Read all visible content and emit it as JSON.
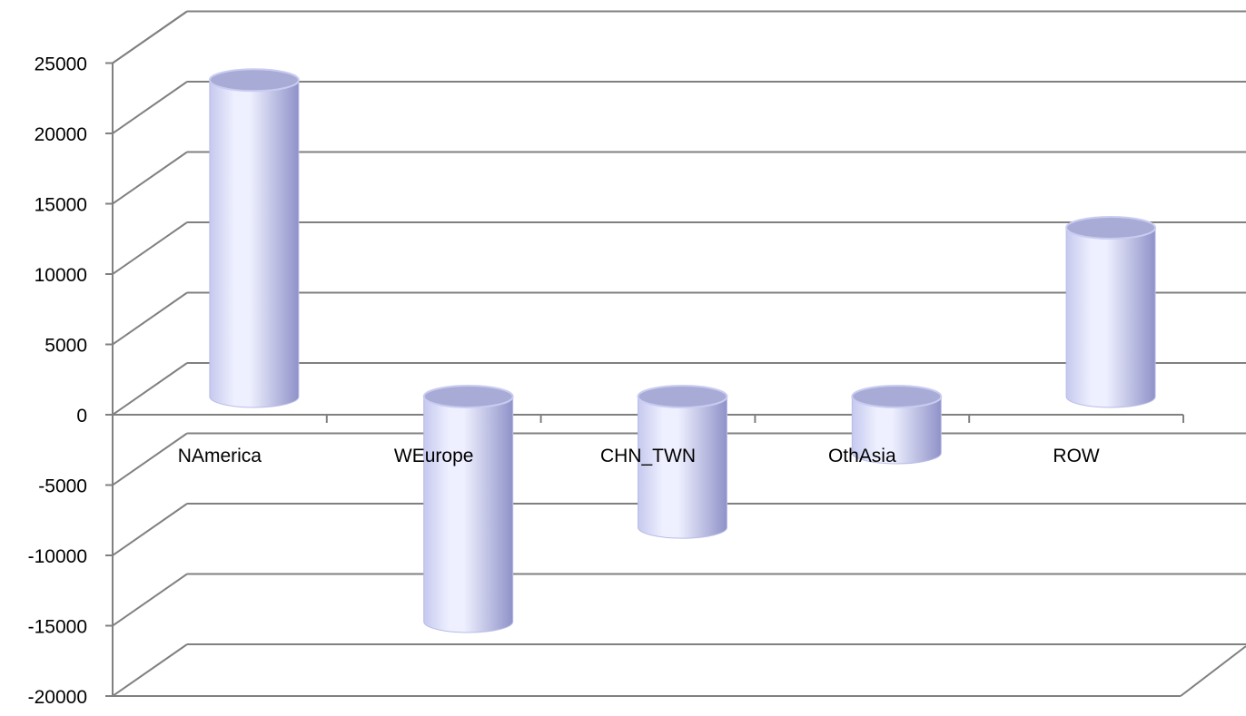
{
  "chart_data": {
    "type": "bar",
    "style": "3d-cylinder",
    "title": "",
    "xlabel": "",
    "ylabel": "",
    "categories": [
      "NAmerica",
      "WEurope",
      "CHN_TWN",
      "OthAsia",
      "ROW"
    ],
    "values": [
      22500,
      -16000,
      -9300,
      -4000,
      12000
    ],
    "ylim": [
      -20000,
      25000
    ],
    "yticks": [
      25000,
      20000,
      15000,
      10000,
      5000,
      0,
      -5000,
      -10000,
      -15000,
      -20000
    ],
    "ytick_labels": [
      "25000",
      "20000",
      "15000",
      "10000",
      "5000",
      "0",
      "-5000",
      "-10000",
      "-15000",
      "-20000"
    ],
    "grid": true,
    "legend": "none",
    "colors": {
      "bar_light": "#eef0ff",
      "bar_mid": "#c6c9ee",
      "bar_dark": "#8f92c8",
      "bar_top": "#a8abd6",
      "gridline": "#808080"
    }
  }
}
